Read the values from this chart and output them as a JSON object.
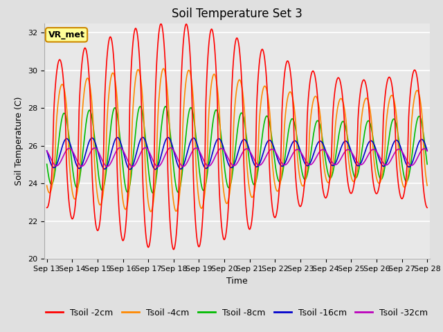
{
  "title": "Soil Temperature Set 3",
  "xlabel": "Time",
  "ylabel": "Soil Temperature (C)",
  "ylim": [
    20,
    32.5
  ],
  "xlim": [
    -0.1,
    15.1
  ],
  "x_tick_labels": [
    "Sep 13",
    "Sep 14",
    "Sep 15",
    "Sep 16",
    "Sep 17",
    "Sep 18",
    "Sep 19",
    "Sep 20",
    "Sep 21",
    "Sep 22",
    "Sep 23",
    "Sep 24",
    "Sep 25",
    "Sep 26",
    "Sep 27",
    "Sep 28"
  ],
  "legend_labels": [
    "Tsoil -2cm",
    "Tsoil -4cm",
    "Tsoil -8cm",
    "Tsoil -16cm",
    "Tsoil -32cm"
  ],
  "line_colors": [
    "#ff0000",
    "#ff8800",
    "#00bb00",
    "#0000cc",
    "#bb00bb"
  ],
  "annotation_text": "VR_met",
  "annotation_bg": "#ffff99",
  "annotation_border": "#cc8800",
  "plot_bg_color": "#e8e8e8",
  "fig_bg_color": "#e0e0e0",
  "grid_color": "#ffffff",
  "title_fontsize": 12,
  "label_fontsize": 9,
  "tick_fontsize": 8,
  "legend_fontsize": 9
}
